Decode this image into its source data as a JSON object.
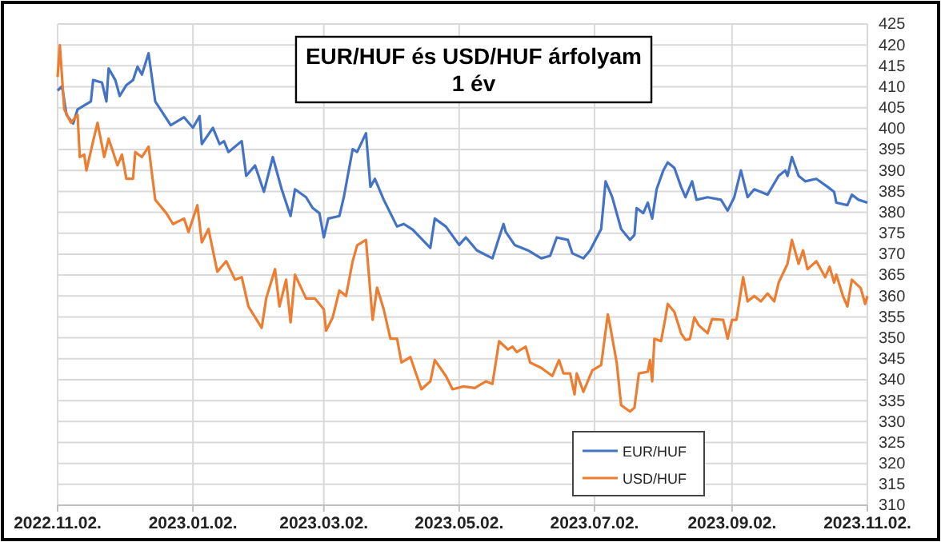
{
  "chart_data": {
    "type": "line",
    "title": "EUR/HUF és USD/HUF árfolyam",
    "subtitle": "1 év",
    "xlim": [
      "2022-11-02",
      "2023-11-02"
    ],
    "xticks": [
      {
        "value": "2022-11-02",
        "label": "2022.11.02."
      },
      {
        "value": "2023-01-02",
        "label": "2023.01.02."
      },
      {
        "value": "2023-03-02",
        "label": "2023.03.02."
      },
      {
        "value": "2023-05-02",
        "label": "2023.05.02."
      },
      {
        "value": "2023-07-02",
        "label": "2023.07.02."
      },
      {
        "value": "2023-09-02",
        "label": "2023.09.02."
      },
      {
        "value": "2023-11-02",
        "label": "2023.11.02."
      }
    ],
    "ylim": [
      310,
      425
    ],
    "yticks": [
      310,
      315,
      320,
      325,
      330,
      335,
      340,
      345,
      350,
      355,
      360,
      365,
      370,
      375,
      380,
      385,
      390,
      395,
      400,
      405,
      410,
      415,
      420,
      425
    ],
    "grid": true,
    "legend": "bottom",
    "marker": "none",
    "line_style": "solid",
    "series": [
      {
        "name": "EUR/HUF",
        "color": "#4472c4",
        "x": [
          "2022-11-02",
          "2022-11-04",
          "2022-11-06",
          "2022-11-09",
          "2022-11-11",
          "2022-11-17",
          "2022-11-18",
          "2022-11-22",
          "2022-11-24",
          "2022-11-25",
          "2022-11-28",
          "2022-11-30",
          "2022-12-03",
          "2022-12-06",
          "2022-12-08",
          "2022-12-10",
          "2022-12-13",
          "2022-12-16",
          "2022-12-23",
          "2022-12-29",
          "2023-01-02",
          "2023-01-05",
          "2023-01-06",
          "2023-01-11",
          "2023-01-14",
          "2023-01-16",
          "2023-01-18",
          "2023-01-24",
          "2023-01-26",
          "2023-01-30",
          "2023-02-03",
          "2023-02-07",
          "2023-02-11",
          "2023-02-15",
          "2023-02-17",
          "2023-02-22",
          "2023-02-25",
          "2023-02-28",
          "2023-03-02",
          "2023-03-04",
          "2023-03-09",
          "2023-03-11",
          "2023-03-15",
          "2023-03-17",
          "2023-03-21",
          "2023-03-23",
          "2023-03-25",
          "2023-03-29",
          "2023-04-04",
          "2023-04-07",
          "2023-04-11",
          "2023-04-19",
          "2023-04-21",
          "2023-04-26",
          "2023-05-02",
          "2023-05-05",
          "2023-05-10",
          "2023-05-17",
          "2023-05-20",
          "2023-05-22",
          "2023-05-23",
          "2023-05-27",
          "2023-06-02",
          "2023-06-08",
          "2023-06-12",
          "2023-06-15",
          "2023-06-20",
          "2023-06-22",
          "2023-06-27",
          "2023-06-30",
          "2023-07-05",
          "2023-07-07",
          "2023-07-10",
          "2023-07-14",
          "2023-07-18",
          "2023-07-20",
          "2023-07-21",
          "2023-07-24",
          "2023-07-26",
          "2023-07-28",
          "2023-07-30",
          "2023-08-02",
          "2023-08-04",
          "2023-08-07",
          "2023-08-10",
          "2023-08-12",
          "2023-08-15",
          "2023-08-17",
          "2023-08-22",
          "2023-08-28",
          "2023-08-31",
          "2023-09-03",
          "2023-09-06",
          "2023-09-09",
          "2023-09-12",
          "2023-09-18",
          "2023-09-23",
          "2023-09-26",
          "2023-09-27",
          "2023-09-29",
          "2023-10-02",
          "2023-10-05",
          "2023-10-10",
          "2023-10-15",
          "2023-10-18",
          "2023-10-19",
          "2023-10-24",
          "2023-10-26",
          "2023-10-29",
          "2023-11-02"
        ],
        "values": [
          409.1,
          410.1,
          403.3,
          401.2,
          404.6,
          406.5,
          411.6,
          411,
          406.5,
          414.4,
          411.6,
          407.8,
          410.4,
          411.6,
          414.8,
          412.9,
          418,
          406.5,
          400.8,
          402.7,
          400.2,
          403,
          396.3,
          400.2,
          396.3,
          397,
          394.4,
          397,
          388.7,
          391.2,
          384.9,
          393.2,
          385.5,
          379.1,
          385.5,
          383.6,
          381,
          379.8,
          374,
          378.5,
          379.1,
          383.6,
          395.1,
          394.4,
          398.9,
          386.1,
          388,
          383,
          376.6,
          377.2,
          375.9,
          371.5,
          378.5,
          376.6,
          372.2,
          374,
          370.9,
          369,
          374,
          377.2,
          375.3,
          372.2,
          370.9,
          369,
          369.6,
          374,
          373.4,
          370.2,
          369,
          370.9,
          376,
          387.4,
          383.6,
          376,
          373.4,
          374.6,
          381,
          379.8,
          382.3,
          378.5,
          385.5,
          390,
          391.9,
          390.6,
          386.1,
          383.6,
          387.4,
          383,
          383.6,
          383,
          380.4,
          383.6,
          390,
          383.6,
          385.5,
          384.2,
          388.7,
          390,
          388.7,
          393.2,
          388.7,
          387.4,
          388,
          386.1,
          384.9,
          382.3,
          381.7,
          384.2,
          383,
          382.3
        ]
      },
      {
        "name": "USD/HUF",
        "color": "#ed7d31",
        "x": [
          "2022-11-02",
          "2022-11-03",
          "2022-11-05",
          "2022-11-08",
          "2022-11-11",
          "2022-11-12",
          "2022-11-14",
          "2022-11-15",
          "2022-11-18",
          "2022-11-20",
          "2022-11-23",
          "2022-11-25",
          "2022-11-29",
          "2022-12-01",
          "2022-12-03",
          "2022-12-06",
          "2022-12-07",
          "2022-12-10",
          "2022-12-13",
          "2022-12-16",
          "2022-12-21",
          "2022-12-24",
          "2022-12-29",
          "2022-12-31",
          "2023-01-04",
          "2023-01-06",
          "2023-01-09",
          "2023-01-13",
          "2023-01-17",
          "2023-01-21",
          "2023-01-24",
          "2023-01-27",
          "2023-02-02",
          "2023-02-04",
          "2023-02-08",
          "2023-02-10",
          "2023-02-13",
          "2023-02-15",
          "2023-02-17",
          "2023-02-22",
          "2023-02-26",
          "2023-03-02",
          "2023-03-03",
          "2023-03-06",
          "2023-03-09",
          "2023-03-12",
          "2023-03-15",
          "2023-03-17",
          "2023-03-21",
          "2023-03-24",
          "2023-03-26",
          "2023-03-29",
          "2023-04-01",
          "2023-04-04",
          "2023-04-06",
          "2023-04-10",
          "2023-04-15",
          "2023-04-19",
          "2023-04-21",
          "2023-04-26",
          "2023-04-29",
          "2023-05-04",
          "2023-05-09",
          "2023-05-14",
          "2023-05-17",
          "2023-05-20",
          "2023-05-24",
          "2023-05-26",
          "2023-05-28",
          "2023-06-01",
          "2023-06-03",
          "2023-06-08",
          "2023-06-13",
          "2023-06-16",
          "2023-06-18",
          "2023-06-21",
          "2023-06-23",
          "2023-06-24",
          "2023-06-27",
          "2023-07-01",
          "2023-07-05",
          "2023-07-08",
          "2023-07-09",
          "2023-07-12",
          "2023-07-14",
          "2023-07-18",
          "2023-07-20",
          "2023-07-22",
          "2023-07-26",
          "2023-07-27",
          "2023-07-28",
          "2023-07-29",
          "2023-08-01",
          "2023-08-03",
          "2023-08-04",
          "2023-08-07",
          "2023-08-10",
          "2023-08-12",
          "2023-08-14",
          "2023-08-16",
          "2023-08-18",
          "2023-08-22",
          "2023-08-24",
          "2023-08-29",
          "2023-08-31",
          "2023-09-02",
          "2023-09-04",
          "2023-09-07",
          "2023-09-09",
          "2023-09-12",
          "2023-09-15",
          "2023-09-18",
          "2023-09-21",
          "2023-09-23",
          "2023-09-27",
          "2023-09-29",
          "2023-10-02",
          "2023-10-04",
          "2023-10-06",
          "2023-10-10",
          "2023-10-14",
          "2023-10-16",
          "2023-10-18",
          "2023-10-19",
          "2023-10-22",
          "2023-10-24",
          "2023-10-26",
          "2023-10-30",
          "2023-11-01",
          "2023-11-02"
        ],
        "values": [
          412.3,
          419.9,
          404.6,
          401.4,
          403.3,
          393.2,
          393.8,
          390,
          397,
          401.4,
          393.2,
          397.6,
          391.2,
          393.8,
          388,
          388,
          394.4,
          393.2,
          395.7,
          383,
          379.8,
          377.2,
          378.5,
          375.3,
          381.7,
          372.8,
          376,
          365.8,
          368.3,
          363.9,
          364.5,
          357.5,
          352.4,
          359.4,
          366.4,
          357.5,
          363.9,
          353.7,
          365.1,
          359.4,
          359.4,
          356.8,
          351.7,
          354.9,
          361.3,
          360,
          368.3,
          372.1,
          373.4,
          354.3,
          362,
          356.8,
          349.8,
          349.8,
          344.1,
          345.4,
          337.7,
          339.6,
          344.7,
          340.9,
          337.7,
          338.4,
          338,
          339.6,
          339,
          349.2,
          347.2,
          347.9,
          346.6,
          347.9,
          344.1,
          342.8,
          340.9,
          344.7,
          341.5,
          341.5,
          336.5,
          341.5,
          337.1,
          342.2,
          343.5,
          355.6,
          353,
          344.1,
          333.9,
          332.4,
          333.3,
          341.5,
          341.9,
          344.7,
          339.6,
          349.8,
          349.2,
          354.9,
          358.1,
          356.2,
          351.1,
          349.5,
          349.7,
          354.9,
          353,
          351.1,
          354.5,
          354.3,
          349.8,
          354.3,
          354.3,
          364.5,
          358.7,
          360,
          358.7,
          360.6,
          358.7,
          363.2,
          367.7,
          373.4,
          367.7,
          370.9,
          366.4,
          368.3,
          364.5,
          367,
          363.2,
          365.1,
          360,
          357.5,
          363.9,
          361.9,
          358.1,
          360
        ]
      }
    ]
  }
}
